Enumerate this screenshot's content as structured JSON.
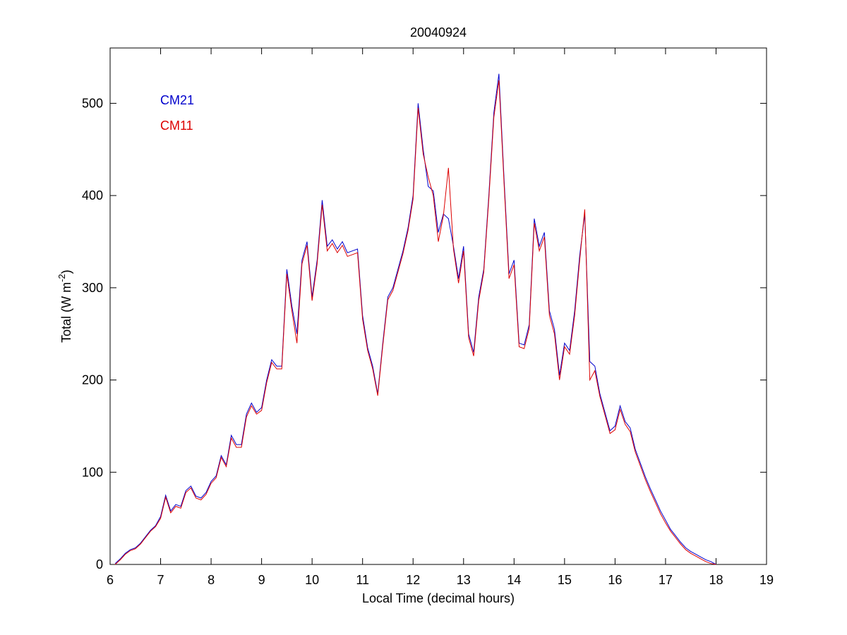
{
  "chart_data": {
    "type": "line",
    "title": "20040924",
    "xlabel": "Local Time (decimal hours)",
    "ylabel_parts": [
      "Total (W m",
      "-2",
      ")"
    ],
    "xlim": [
      6,
      19
    ],
    "ylim": [
      0,
      560
    ],
    "xticks": [
      6,
      7,
      8,
      9,
      10,
      11,
      12,
      13,
      14,
      15,
      16,
      17,
      18,
      19
    ],
    "yticks": [
      0,
      100,
      200,
      300,
      400,
      500
    ],
    "x": [
      6.1,
      6.2,
      6.3,
      6.4,
      6.5,
      6.6,
      6.7,
      6.8,
      6.9,
      7.0,
      7.1,
      7.2,
      7.3,
      7.4,
      7.5,
      7.6,
      7.7,
      7.8,
      7.9,
      8.0,
      8.1,
      8.2,
      8.3,
      8.4,
      8.5,
      8.6,
      8.7,
      8.8,
      8.9,
      9.0,
      9.1,
      9.2,
      9.3,
      9.4,
      9.5,
      9.6,
      9.7,
      9.8,
      9.9,
      10.0,
      10.1,
      10.2,
      10.3,
      10.4,
      10.5,
      10.6,
      10.7,
      10.8,
      10.9,
      11.0,
      11.1,
      11.2,
      11.3,
      11.4,
      11.5,
      11.6,
      11.7,
      11.8,
      11.9,
      12.0,
      12.1,
      12.2,
      12.3,
      12.4,
      12.5,
      12.6,
      12.7,
      12.8,
      12.9,
      13.0,
      13.1,
      13.2,
      13.3,
      13.4,
      13.5,
      13.6,
      13.7,
      13.8,
      13.9,
      14.0,
      14.1,
      14.2,
      14.3,
      14.4,
      14.5,
      14.6,
      14.7,
      14.8,
      14.9,
      15.0,
      15.1,
      15.2,
      15.3,
      15.4,
      15.5,
      15.6,
      15.7,
      15.8,
      15.9,
      16.0,
      16.1,
      16.2,
      16.3,
      16.4,
      16.5,
      16.6,
      16.7,
      16.8,
      16.9,
      17.0,
      17.1,
      17.2,
      17.3,
      17.4,
      17.5,
      17.6,
      17.7,
      17.8,
      17.9,
      18.0
    ],
    "series": [
      {
        "name": "CM21",
        "color": "#0000cc",
        "values": [
          1,
          6,
          12,
          16,
          18,
          23,
          30,
          37,
          42,
          52,
          75,
          58,
          65,
          63,
          80,
          85,
          74,
          72,
          78,
          90,
          96,
          118,
          108,
          140,
          130,
          130,
          163,
          175,
          165,
          170,
          200,
          222,
          215,
          215,
          320,
          280,
          250,
          330,
          350,
          290,
          330,
          395,
          345,
          352,
          342,
          350,
          338,
          340,
          342,
          270,
          235,
          215,
          185,
          240,
          290,
          300,
          320,
          340,
          365,
          400,
          500,
          450,
          410,
          405,
          360,
          380,
          375,
          345,
          310,
          345,
          250,
          230,
          290,
          320,
          400,
          490,
          532,
          420,
          315,
          330,
          240,
          238,
          260,
          375,
          345,
          360,
          275,
          255,
          205,
          240,
          232,
          275,
          335,
          380,
          220,
          215,
          185,
          165,
          145,
          150,
          172,
          155,
          148,
          125,
          110,
          95,
          82,
          70,
          58,
          48,
          38,
          31,
          24,
          18,
          14,
          11,
          8,
          5,
          3,
          0
        ]
      },
      {
        "name": "CM11",
        "color": "#dd0000",
        "values": [
          0,
          5,
          11,
          15,
          17,
          22,
          29,
          36,
          41,
          50,
          73,
          56,
          63,
          61,
          78,
          83,
          72,
          70,
          76,
          88,
          94,
          116,
          106,
          137,
          127,
          127,
          160,
          172,
          163,
          167,
          197,
          219,
          212,
          212,
          315,
          275,
          240,
          326,
          346,
          286,
          326,
          390,
          340,
          348,
          338,
          346,
          334,
          336,
          338,
          266,
          232,
          212,
          183,
          237,
          287,
          297,
          317,
          337,
          362,
          396,
          495,
          445,
          420,
          400,
          350,
          378,
          430,
          342,
          305,
          340,
          246,
          226,
          286,
          317,
          396,
          485,
          525,
          415,
          310,
          325,
          236,
          234,
          256,
          370,
          340,
          355,
          270,
          250,
          200,
          236,
          228,
          270,
          330,
          385,
          200,
          210,
          182,
          162,
          142,
          146,
          168,
          152,
          144,
          122,
          107,
          92,
          79,
          67,
          55,
          45,
          36,
          29,
          22,
          16,
          12,
          9,
          6,
          3,
          1,
          0
        ]
      }
    ]
  }
}
